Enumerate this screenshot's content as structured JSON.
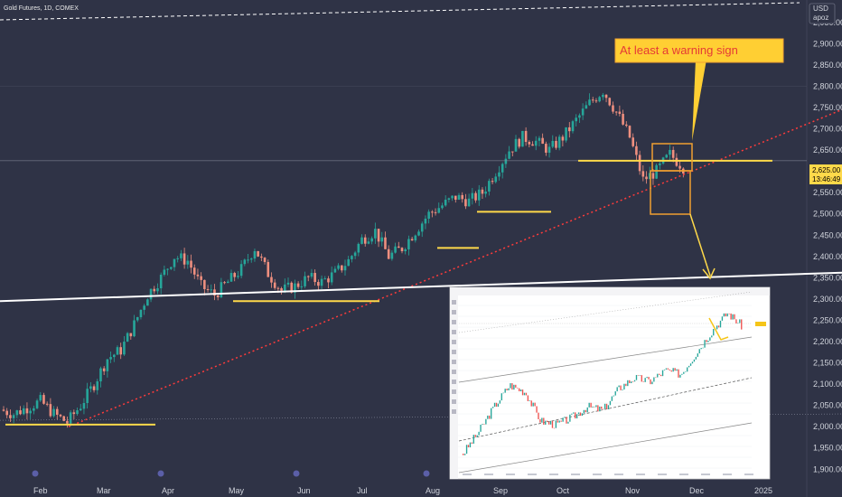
{
  "symbol": {
    "title": "Gold Futures, 1D, COMEX"
  },
  "currency": {
    "code": "USD",
    "scale": "apoz"
  },
  "price_label": {
    "value": "2,625.00",
    "countdown": "13:46:49"
  },
  "callout": {
    "text": "At least a warning sign"
  },
  "icons": [
    "event-flag-icon"
  ],
  "colors": {
    "background": "#2f3346",
    "up_candle": "#26a69a",
    "down_candle": "#ef8f7f",
    "support_line": "#ffd94a",
    "trend_line": "#ff3b3b",
    "channel_line": "#ffffff",
    "price_label_bg": "#ffd94a",
    "callout_bg": "#ffcf33",
    "callout_text": "#e53935",
    "highlight_box": "#f0a030"
  },
  "chart_data": {
    "type": "candlestick",
    "title": "Gold Futures, 1D, COMEX",
    "x_ticks": [
      "Feb",
      "Mar",
      "Apr",
      "May",
      "Jun",
      "Jul",
      "Aug",
      "Sep",
      "Oct",
      "Nov",
      "Dec",
      "2025"
    ],
    "y_ticks": [
      "2,950.00",
      "2,900.00",
      "2,850.00",
      "2,800.00",
      "2,750.00",
      "2,700.00",
      "2,650.00",
      "2,600.00",
      "2,550.00",
      "2,500.00",
      "2,450.00",
      "2,400.00",
      "2,350.00",
      "2,300.00",
      "2,250.00",
      "2,200.00",
      "2,150.00",
      "2,100.00",
      "2,050.00",
      "2,000.00",
      "1,950.00",
      "1,900.00"
    ],
    "ylim": [
      1890,
      2990
    ],
    "last_price": 2625,
    "price_path": [
      [
        "Feb",
        2040
      ],
      [
        "Feb",
        2030
      ],
      [
        "Feb",
        2045
      ],
      [
        "Feb",
        2060
      ],
      [
        "Feb",
        2030
      ],
      [
        "Mar",
        2010
      ],
      [
        "Mar",
        2050
      ],
      [
        "Mar",
        2100
      ],
      [
        "Mar",
        2160
      ],
      [
        "Mar",
        2180
      ],
      [
        "Apr",
        2240
      ],
      [
        "Apr",
        2310
      ],
      [
        "Apr",
        2350
      ],
      [
        "Apr",
        2400
      ],
      [
        "Apr",
        2390
      ],
      [
        "May",
        2330
      ],
      [
        "May",
        2310
      ],
      [
        "May",
        2340
      ],
      [
        "May",
        2370
      ],
      [
        "May",
        2420
      ],
      [
        "Jun",
        2360
      ],
      [
        "Jun",
        2320
      ],
      [
        "Jun",
        2330
      ],
      [
        "Jun",
        2350
      ],
      [
        "Jun",
        2340
      ],
      [
        "Jul",
        2360
      ],
      [
        "Jul",
        2390
      ],
      [
        "Jul",
        2440
      ],
      [
        "Jul",
        2460
      ],
      [
        "Jul",
        2400
      ],
      [
        "Aug",
        2420
      ],
      [
        "Aug",
        2460
      ],
      [
        "Aug",
        2500
      ],
      [
        "Aug",
        2520
      ],
      [
        "Aug",
        2540
      ],
      [
        "Sep",
        2530
      ],
      [
        "Sep",
        2550
      ],
      [
        "Sep",
        2600
      ],
      [
        "Sep",
        2650
      ],
      [
        "Sep",
        2680
      ],
      [
        "Oct",
        2670
      ],
      [
        "Oct",
        2650
      ],
      [
        "Oct",
        2680
      ],
      [
        "Oct",
        2720
      ],
      [
        "Oct",
        2760
      ],
      [
        "Nov",
        2790
      ],
      [
        "Nov",
        2740
      ],
      [
        "Nov",
        2680
      ],
      [
        "Nov",
        2580
      ],
      [
        "Nov",
        2600
      ],
      [
        "Dec",
        2640
      ],
      [
        "Dec",
        2610
      ]
    ],
    "trendline_dotted": [
      [
        "Feb",
        2000
      ],
      [
        "Dec",
        2620
      ]
    ],
    "horizontal_lines": [
      2625
    ],
    "channel_line": [
      2295,
      2365
    ]
  }
}
